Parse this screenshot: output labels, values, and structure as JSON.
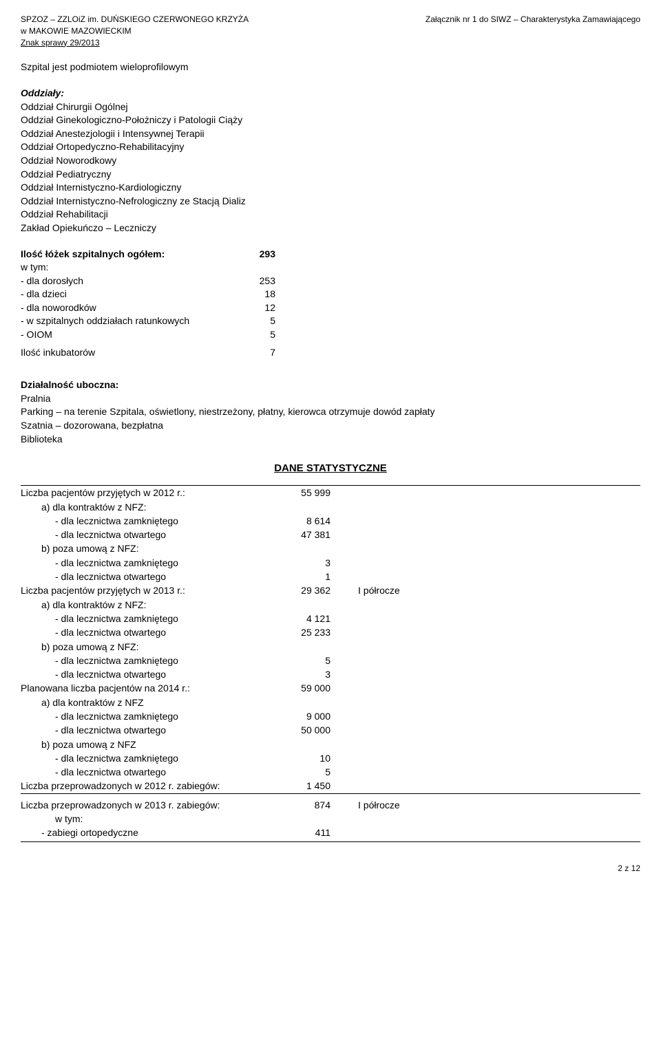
{
  "header": {
    "left_line1": "SPZOZ – ZZLOiZ im. DUŃSKIEGO CZERWONEGO KRZYŻA",
    "left_line2": "w MAKOWIE MAZOWIECKIM",
    "left_line3": "Znak sprawy  29/2013",
    "right_line1": "Załącznik nr 1 do SIWZ – Charakterystyka Zamawiającego"
  },
  "intro": "Szpital jest podmiotem wieloprofilowym",
  "departments": {
    "title": "Oddziały:",
    "items": [
      "Oddział Chirurgii Ogólnej",
      "Oddział Ginekologiczno-Położniczy i Patologii Ciąży",
      "Oddział Anestezjologii i Intensywnej Terapii",
      "Oddział Ortopedyczno-Rehabilitacyjny",
      "Oddział Noworodkowy",
      "Oddział Pediatryczny",
      "Oddział Internistyczno-Kardiologiczny",
      "Oddział Internistyczno-Nefrologiczny ze Stacją Dializ",
      "Oddział Rehabilitacji",
      "Zakład Opiekuńczo – Leczniczy"
    ]
  },
  "beds": {
    "title": "Ilość łóżek szpitalnych ogółem:",
    "total": "293",
    "sub_label": "w tym:",
    "rows": [
      {
        "label": "- dla dorosłych",
        "value": "253"
      },
      {
        "label": "- dla dzieci",
        "value": "18"
      },
      {
        "label": "- dla noworodków",
        "value": "12"
      },
      {
        "label": "- w szpitalnych oddziałach ratunkowych",
        "value": "5"
      },
      {
        "label": "- OIOM",
        "value": "5"
      }
    ],
    "incubators_label": "Ilość inkubatorów",
    "incubators_value": "7"
  },
  "side_activity": {
    "title": "Działalność uboczna:",
    "items": [
      "Pralnia",
      "Parking – na terenie Szpitala, oświetlony, niestrzeżony, płatny, kierowca otrzymuje dowód zapłaty",
      "Szatnia – dozorowana, bezpłatna",
      "Biblioteka"
    ]
  },
  "stats_title": "DANE STATYSTYCZNE",
  "stats": {
    "rows": [
      {
        "label": "Liczba pacjentów przyjętych w 2012 r.:",
        "value": "55 999",
        "indent": 0,
        "note": ""
      },
      {
        "label": "a) dla kontraktów z NFZ:",
        "value": "",
        "indent": 1,
        "note": ""
      },
      {
        "label": "- dla lecznictwa zamkniętego",
        "value": "8 614",
        "indent": 2,
        "note": ""
      },
      {
        "label": "- dla lecznictwa otwartego",
        "value": "47 381",
        "indent": 2,
        "note": ""
      },
      {
        "label": "b) poza umową z NFZ:",
        "value": "",
        "indent": 1,
        "note": ""
      },
      {
        "label": "- dla lecznictwa zamkniętego",
        "value": "3",
        "indent": 2,
        "note": ""
      },
      {
        "label": "- dla lecznictwa otwartego",
        "value": "1",
        "indent": 2,
        "note": ""
      },
      {
        "label": "Liczba pacjentów przyjętych w 2013 r.:",
        "value": "29 362",
        "indent": 0,
        "note": "I półrocze"
      },
      {
        "label": "a) dla kontraktów z NFZ:",
        "value": "",
        "indent": 1,
        "note": ""
      },
      {
        "label": "- dla lecznictwa zamkniętego",
        "value": "4 121",
        "indent": 2,
        "note": ""
      },
      {
        "label": "- dla lecznictwa otwartego",
        "value": "25 233",
        "indent": 2,
        "note": ""
      },
      {
        "label": "b) poza umową z NFZ:",
        "value": "",
        "indent": 1,
        "note": ""
      },
      {
        "label": "- dla lecznictwa zamkniętego",
        "value": "5",
        "indent": 2,
        "note": ""
      },
      {
        "label": "- dla lecznictwa otwartego",
        "value": "3",
        "indent": 2,
        "note": ""
      },
      {
        "label": "Planowana liczba pacjentów na 2014 r.:",
        "value": "59 000",
        "indent": 0,
        "note": ""
      },
      {
        "label": "a) dla kontraktów z NFZ",
        "value": "",
        "indent": 1,
        "note": ""
      },
      {
        "label": "- dla lecznictwa zamkniętego",
        "value": "9 000",
        "indent": 2,
        "note": ""
      },
      {
        "label": "- dla lecznictwa otwartego",
        "value": "50 000",
        "indent": 2,
        "note": ""
      },
      {
        "label": "b) poza umową z NFZ",
        "value": "",
        "indent": 1,
        "note": ""
      },
      {
        "label": "- dla lecznictwa zamkniętego",
        "value": "10",
        "indent": 2,
        "note": ""
      },
      {
        "label": "- dla lecznictwa otwartego",
        "value": "5",
        "indent": 2,
        "note": ""
      },
      {
        "label": "Liczba przeprowadzonych w 2012 r.  zabiegów:",
        "value": "1 450",
        "indent": 0,
        "note": ""
      }
    ],
    "rows2": [
      {
        "label": "Liczba przeprowadzonych w 2013 r.  zabiegów:",
        "value": "874",
        "indent": 0,
        "note": "I półrocze"
      },
      {
        "label": "w tym:",
        "value": "",
        "indent": 2,
        "note": ""
      },
      {
        "label": "- zabiegi ortopedyczne",
        "value": "411",
        "indent": 1,
        "note": ""
      }
    ]
  },
  "footer": "2 z 12"
}
